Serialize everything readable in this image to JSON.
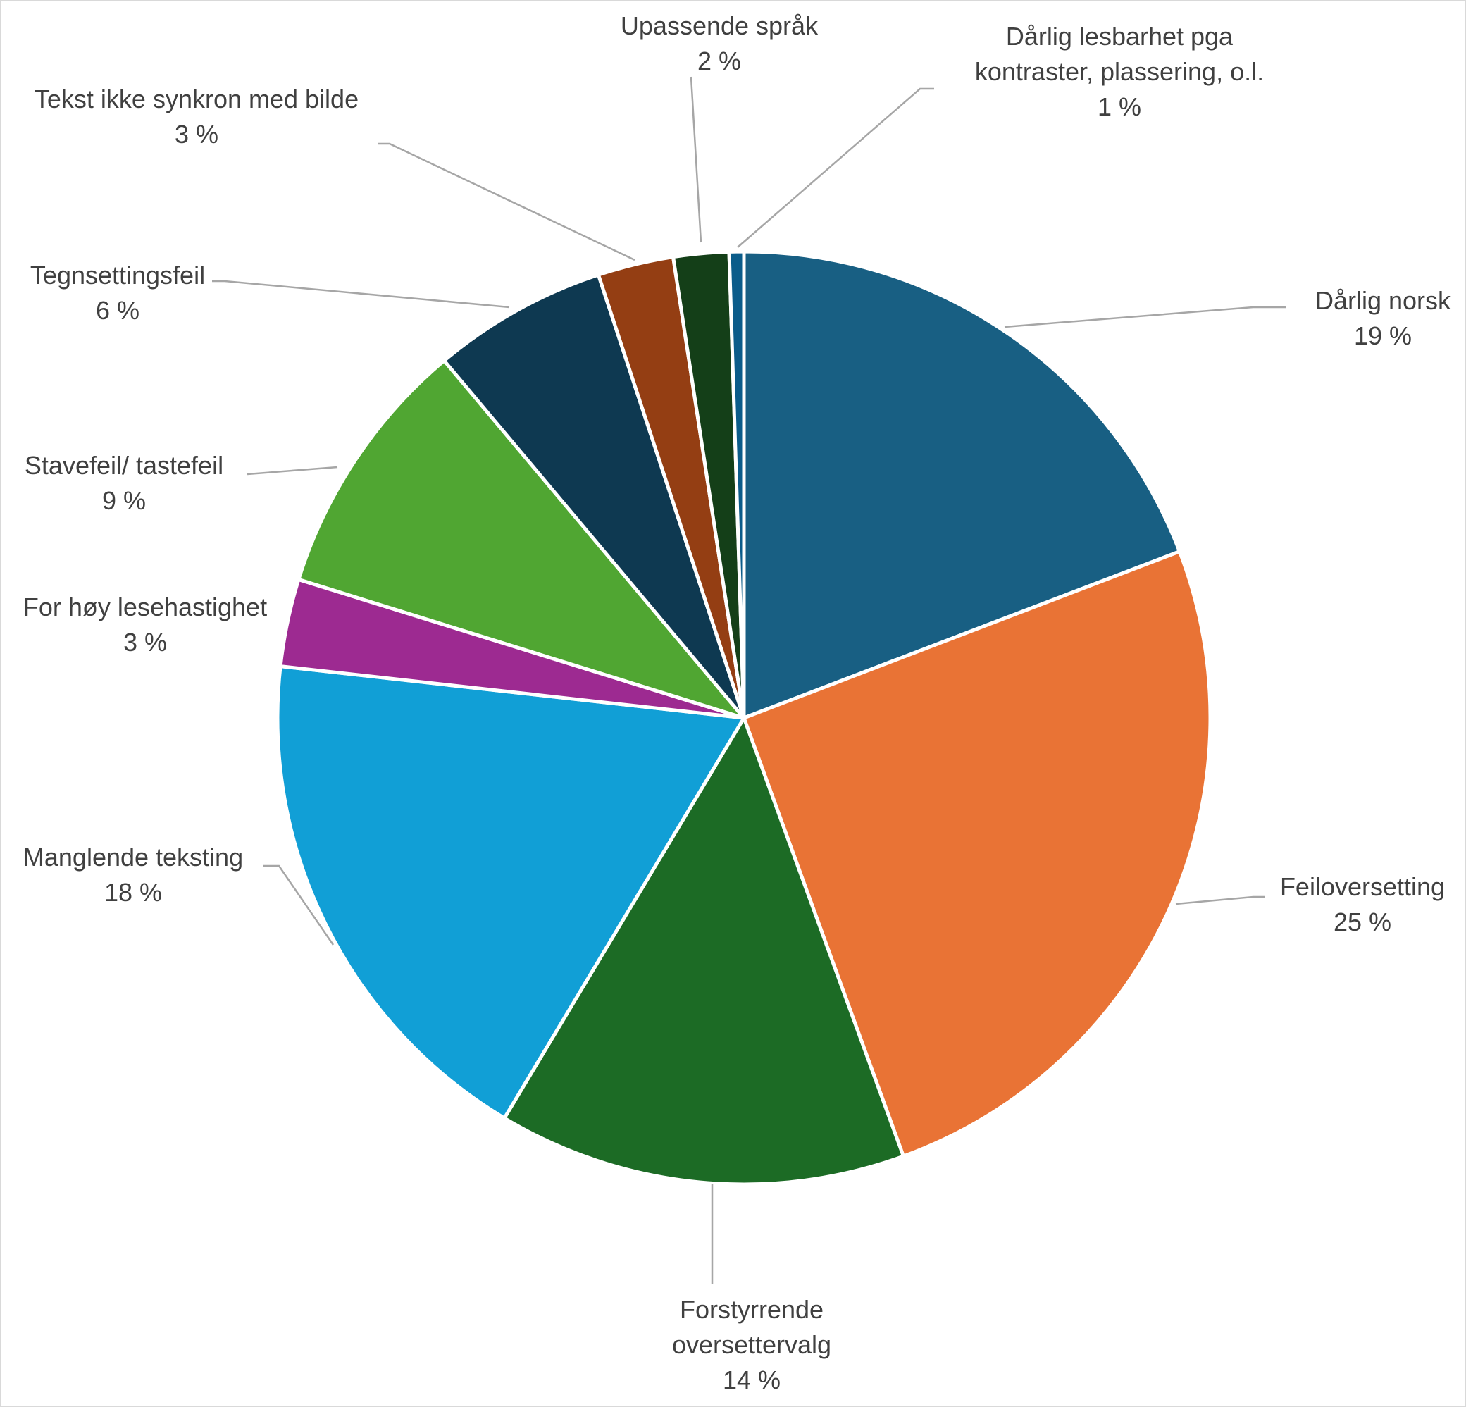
{
  "chart_data": {
    "type": "pie",
    "start_angle_deg": 0,
    "direction": "clockwise",
    "slices": [
      {
        "name": "Dårlig norsk",
        "value": 19,
        "label_lines": [
          "Dårlig norsk"
        ],
        "value_label": "19 %",
        "color": "#185f83"
      },
      {
        "name": "Feiloversetting",
        "value": 25,
        "label_lines": [
          "Feiloversetting"
        ],
        "value_label": "25 %",
        "color": "#e97335"
      },
      {
        "name": "Forstyrrende oversettervalg",
        "value": 14,
        "label_lines": [
          "Forstyrrende",
          "oversettervalg"
        ],
        "value_label": "14 %",
        "color": "#1c6b25"
      },
      {
        "name": "Manglende teksting",
        "value": 18,
        "label_lines": [
          "Manglende teksting"
        ],
        "value_label": "18 %",
        "color": "#119fd6"
      },
      {
        "name": "For høy lesehastighet",
        "value": 3,
        "label_lines": [
          "For høy lesehastighet"
        ],
        "value_label": "3 %",
        "color": "#9d2a91"
      },
      {
        "name": "Stavefeil/ tastefeil",
        "value": 9,
        "label_lines": [
          "Stavefeil/ tastefeil"
        ],
        "value_label": "9 %",
        "color": "#50a632"
      },
      {
        "name": "Tegnsettingsfeil",
        "value": 6,
        "label_lines": [
          "Tegnsettingsfeil"
        ],
        "value_label": "6 %",
        "color": "#0e3951"
      },
      {
        "name": "Tekst ikke synkron med bilde",
        "value": 2.6,
        "label_lines": [
          "Tekst ikke synkron med bilde"
        ],
        "value_label": "3 %",
        "color": "#943e13"
      },
      {
        "name": "Upassende språk",
        "value": 1.9,
        "label_lines": [
          "Upassende språk"
        ],
        "value_label": "2 %",
        "color": "#143f18"
      },
      {
        "name": "Dårlig lesbarhet pga kontraster, plassering, o.l.",
        "value": 0.5,
        "label_lines": [
          "Dårlig lesbarhet pga",
          "kontraster, plassering, o.l."
        ],
        "value_label": "1 %",
        "color": "#0b5c8a"
      }
    ]
  }
}
